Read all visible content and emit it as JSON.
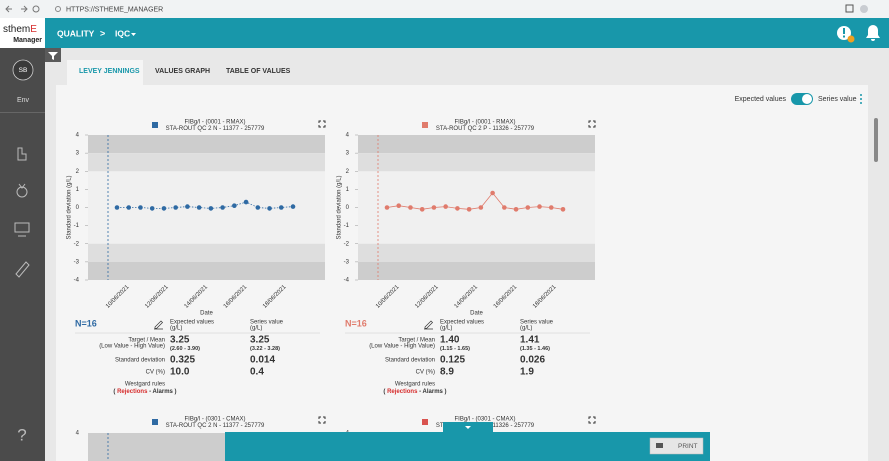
{
  "browser": {
    "url": "HTTPS://STHEME_MANAGER"
  },
  "header": {
    "logo": [
      "sthem",
      "E"
    ],
    "logo_sub": "Manager",
    "section": "QUALITY",
    "separator": ">",
    "page": "IQC"
  },
  "sidebar": {
    "user": "SB",
    "env": "Env",
    "help": "?"
  },
  "tabs": [
    "LEVEY JENNINGS",
    "VALUES GRAPH",
    "TABLE OF VALUES"
  ],
  "toggle": {
    "left": "Expected values",
    "right": "Series value"
  },
  "stats_labels": {
    "expected": "Expected values",
    "series": "Series value",
    "unit": "(g/L)",
    "target": "Target / Mean",
    "target_sub": "(Low Value - High Value)",
    "sd": "Standard deviation",
    "cv": "CV (%)",
    "westgard": "Westgard rules",
    "westgard_legend": [
      "( ",
      "Rejections",
      " - ",
      "Alarms",
      " )"
    ]
  },
  "charts": [
    {
      "type": "line",
      "title": "FIBg/l - (0001 - RMAX)",
      "subtitle": "STA-ROUT QC 2 N - 11377 - 257779",
      "color": "#2f6aa3",
      "ylabel": "Standard deviation (g/L)",
      "xlabel": "Date",
      "ylim": [
        -4,
        4
      ],
      "yticks": [
        -4,
        -3,
        -2,
        -1,
        0,
        1,
        2,
        3,
        4
      ],
      "x_tick_labels": [
        "10/06/2021",
        "12/06/2021",
        "14/06/2021",
        "16/06/2021",
        "18/06/2021"
      ],
      "values": [
        0,
        0,
        0,
        -0.05,
        -0.05,
        0,
        0.05,
        0,
        -0.05,
        0,
        0.1,
        0.3,
        0,
        -0.05,
        0,
        0.05
      ],
      "n_label": "N=16",
      "target_expected": "3.25",
      "range_expected": "(2.60 - 3.90)",
      "target_series": "3.25",
      "range_series": "(3.22 - 3.28)",
      "sd_expected": "0.325",
      "sd_series": "0.014",
      "cv_expected": "10.0",
      "cv_series": "0.4"
    },
    {
      "type": "line",
      "title": "FIBg/l - (0001 - RMAX)",
      "subtitle": "STA-ROUT QC 2 P - 11326 - 257779",
      "color": "#e07b6c",
      "ylabel": "Standard deviation (g/L)",
      "xlabel": "Date",
      "ylim": [
        -4,
        4
      ],
      "yticks": [
        -4,
        -3,
        -2,
        -1,
        0,
        1,
        2,
        3,
        4
      ],
      "x_tick_labels": [
        "10/06/2021",
        "12/06/2021",
        "14/06/2021",
        "16/06/2021",
        "18/06/2021"
      ],
      "values": [
        0,
        0.1,
        0,
        -0.1,
        0,
        0.05,
        -0.05,
        -0.1,
        0,
        0.8,
        0,
        -0.1,
        0,
        0.05,
        0,
        -0.1
      ],
      "n_label": "N=16",
      "target_expected": "1.40",
      "range_expected": "(1.15 - 1.65)",
      "target_series": "1.41",
      "range_series": "(1.35 - 1.46)",
      "sd_expected": "0.125",
      "sd_series": "0.026",
      "cv_expected": "8.9",
      "cv_series": "1.9"
    }
  ],
  "lower_charts": [
    {
      "title": "FIBg/l - (0301 - CMAX)",
      "subtitle": "STA-ROUT QC 2 N - 11377 - 257779",
      "color": "#2f6aa3"
    },
    {
      "title": "FIBg/l - (0301 - CMAX)",
      "subtitle": "STA-ROUT QC 2 P - 11326 - 257779",
      "color": "#d9534f"
    }
  ],
  "lower_yticks": [
    4
  ],
  "footer": {
    "print": "PRINT"
  }
}
